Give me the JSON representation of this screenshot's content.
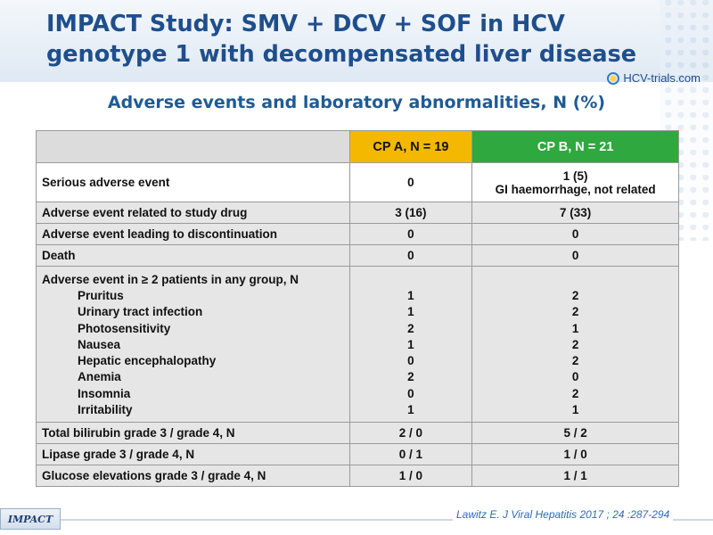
{
  "header": {
    "title_line1": "IMPACT Study: SMV + DCV + SOF in HCV",
    "title_line2": "genotype 1 with decompensated liver disease",
    "logo_text": "HCV-trials.com"
  },
  "subtitle": "Adverse events and laboratory abnormalities, N (%)",
  "table": {
    "col_a": "CP A, N = 19",
    "col_b": "CP B, N = 21",
    "rows": [
      {
        "label": "Serious adverse event",
        "a": "0",
        "b_line1": "1 (5)",
        "b_line2": "GI haemorrhage, not related"
      },
      {
        "label": "Adverse event related to study drug",
        "a": "3 (16)",
        "b": "7 (33)"
      },
      {
        "label": "Adverse event leading to discontinuation",
        "a": "0",
        "b": "0"
      },
      {
        "label": "Death",
        "a": "0",
        "b": "0"
      },
      {
        "label": "Adverse event in ≥ 2 patients in any group, N"
      },
      {
        "label": "Total bilirubin grade 3 / grade 4, N",
        "a": "2 / 0",
        "b": "5 / 2"
      },
      {
        "label": "Lipase grade 3 / grade 4, N",
        "a": "0 / 1",
        "b": "1 / 0"
      },
      {
        "label": "Glucose elevations grade 3 / grade 4, N",
        "a": "1 / 0",
        "b": "1 / 1"
      }
    ],
    "ae_items": [
      {
        "label": "Pruritus",
        "a": "1",
        "b": "2"
      },
      {
        "label": "Urinary tract infection",
        "a": "1",
        "b": "2"
      },
      {
        "label": "Photosensitivity",
        "a": "2",
        "b": "1"
      },
      {
        "label": "Nausea",
        "a": "1",
        "b": "2"
      },
      {
        "label": "Hepatic encephalopathy",
        "a": "0",
        "b": "2"
      },
      {
        "label": "Anemia",
        "a": "2",
        "b": "0"
      },
      {
        "label": "Insomnia",
        "a": "0",
        "b": "2"
      },
      {
        "label": "Irritability",
        "a": "1",
        "b": "1"
      }
    ]
  },
  "footer": {
    "logo_text": "IMPACT",
    "citation": "Lawitz  E. J Viral Hepatitis 2017 ; 24 :287-294"
  },
  "colors": {
    "title": "#1f4e8c",
    "cp_a": "#f5b800",
    "cp_b": "#2fa83f",
    "citation": "#2f6bb0"
  }
}
